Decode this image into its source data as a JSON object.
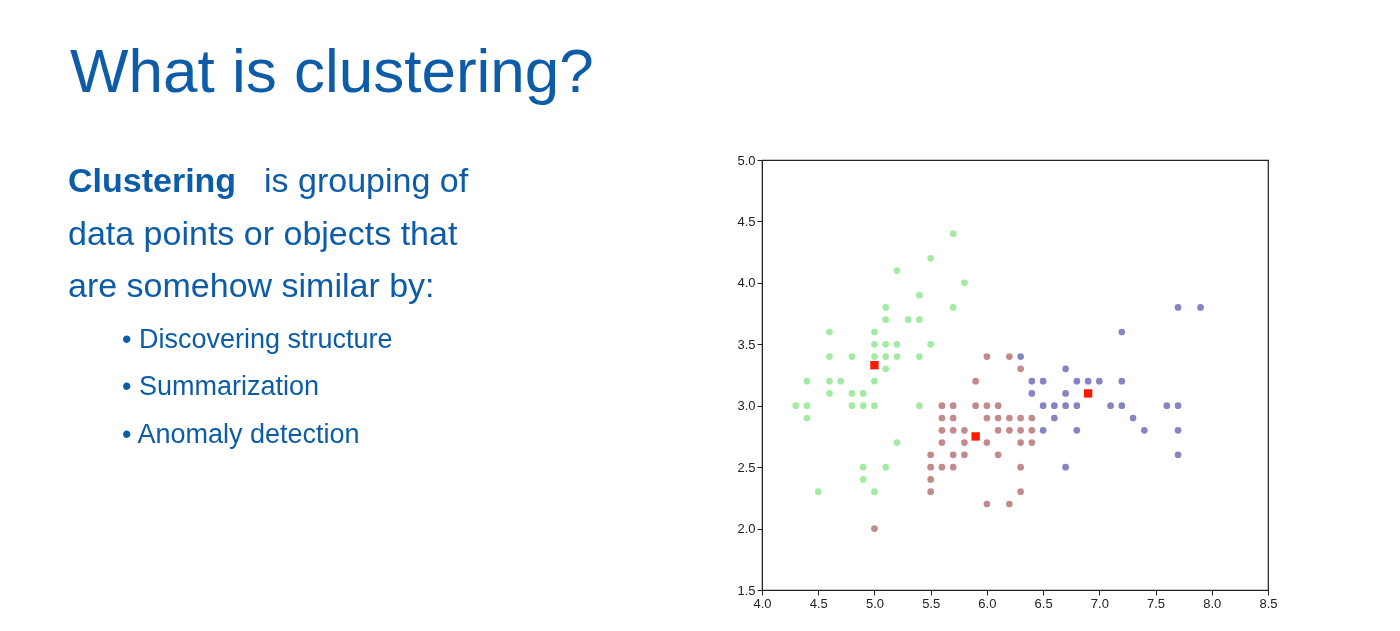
{
  "chart_data": {
    "type": "scatter",
    "title": "What is clustering?",
    "annotations": [
      "Clustering",
      "is grouping of",
      "data points or objects that",
      "are somehow similar by:",
      "• Discovering structure",
      "• Summarization",
      "• Anomaly detection"
    ],
    "xlim": [
      4.0,
      8.5
    ],
    "ylim": [
      1.5,
      5.0
    ],
    "xticks": [
      {
        "value": 4.0,
        "label": "4.0"
      },
      {
        "value": 4.5,
        "label": "4.5"
      },
      {
        "value": 5.0,
        "label": "5.0"
      },
      {
        "value": 5.5,
        "label": "5.5"
      },
      {
        "value": 6.0,
        "label": "6.0"
      },
      {
        "value": 6.5,
        "label": "6.5"
      },
      {
        "value": 7.0,
        "label": "7.0"
      },
      {
        "value": 7.5,
        "label": "7.5"
      },
      {
        "value": 8.0,
        "label": "8.0"
      },
      {
        "value": 8.5,
        "label": "8.5"
      }
    ],
    "yticks": [
      {
        "value": 1.5,
        "label": "1.5"
      },
      {
        "value": 2.0,
        "label": "2.0"
      },
      {
        "value": 2.5,
        "label": "2.5"
      },
      {
        "value": 3.0,
        "label": "3.0"
      },
      {
        "value": 3.5,
        "label": "3.5"
      },
      {
        "value": 4.0,
        "label": "4.0"
      },
      {
        "value": 4.5,
        "label": "4.5"
      },
      {
        "value": 5.0,
        "label": "5.0"
      }
    ],
    "series": [
      {
        "color": "#a3eba3",
        "marker": "circle",
        "x": [
          4.3,
          4.4,
          4.4,
          4.4,
          4.5,
          4.6,
          4.6,
          4.6,
          4.6,
          4.7,
          4.8,
          4.8,
          4.8,
          4.9,
          4.9,
          4.9,
          4.9,
          5.0,
          5.0,
          5.0,
          5.0,
          5.0,
          5.0,
          5.1,
          5.1,
          5.1,
          5.1,
          5.1,
          5.1,
          5.2,
          5.2,
          5.2,
          5.2,
          5.3,
          5.4,
          5.4,
          5.4,
          5.4,
          5.5,
          5.5,
          5.7,
          5.7,
          5.8
        ],
        "values": [
          3.0,
          3.0,
          2.9,
          3.2,
          2.3,
          3.1,
          3.2,
          3.4,
          3.6,
          3.2,
          3.0,
          3.1,
          3.4,
          3.0,
          3.1,
          2.5,
          2.4,
          2.3,
          3.0,
          3.2,
          3.4,
          3.5,
          3.6,
          3.3,
          3.4,
          3.5,
          3.7,
          3.8,
          2.5,
          3.4,
          3.5,
          4.1,
          2.7,
          3.7,
          3.0,
          3.4,
          3.7,
          3.9,
          3.5,
          4.2,
          3.8,
          4.4,
          4.0
        ]
      },
      {
        "color": "#c28a8a",
        "marker": "circle",
        "x": [
          5.0,
          5.5,
          5.5,
          5.5,
          5.5,
          5.6,
          5.6,
          5.6,
          5.6,
          5.6,
          5.7,
          5.7,
          5.7,
          5.7,
          5.7,
          5.8,
          5.8,
          5.8,
          5.9,
          5.9,
          6.0,
          6.0,
          6.0,
          6.0,
          6.0,
          6.1,
          6.1,
          6.1,
          6.1,
          6.2,
          6.2,
          6.2,
          6.2,
          6.3,
          6.3,
          6.3,
          6.3,
          6.3,
          6.3,
          6.4,
          6.4,
          6.4
        ],
        "values": [
          2.0,
          2.3,
          2.4,
          2.5,
          2.6,
          2.5,
          2.7,
          2.8,
          2.9,
          3.0,
          2.5,
          2.6,
          2.8,
          2.9,
          3.0,
          2.6,
          2.7,
          2.8,
          3.0,
          3.2,
          2.2,
          2.7,
          2.9,
          3.0,
          3.4,
          2.6,
          2.8,
          2.9,
          3.0,
          2.2,
          2.8,
          2.9,
          3.4,
          2.3,
          2.5,
          2.7,
          2.8,
          2.9,
          3.3,
          2.7,
          2.8,
          2.9
        ]
      },
      {
        "color": "#8585c4",
        "marker": "circle",
        "x": [
          6.3,
          6.4,
          6.4,
          6.5,
          6.5,
          6.5,
          6.6,
          6.6,
          6.7,
          6.7,
          6.7,
          6.7,
          6.8,
          6.8,
          6.8,
          6.9,
          7.0,
          7.1,
          7.2,
          7.2,
          7.2,
          7.3,
          7.4,
          7.6,
          7.7,
          7.7,
          7.7,
          7.7,
          7.9
        ],
        "values": [
          3.4,
          3.2,
          3.1,
          3.2,
          3.0,
          2.8,
          3.0,
          2.9,
          3.3,
          3.1,
          3.0,
          2.5,
          3.2,
          3.0,
          2.8,
          3.2,
          3.2,
          3.0,
          3.6,
          3.2,
          3.0,
          2.9,
          2.8,
          3.0,
          3.8,
          3.0,
          2.8,
          2.6,
          3.8
        ]
      },
      {
        "color": "#ff1a00",
        "marker": "square",
        "x": [
          5.0,
          5.9,
          6.9
        ],
        "values": [
          3.33,
          2.75,
          3.1
        ]
      }
    ]
  }
}
